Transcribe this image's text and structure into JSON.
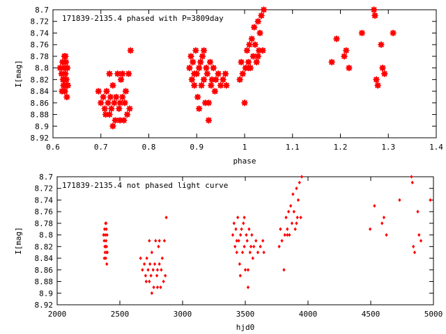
{
  "chart_data": [
    {
      "type": "scatter",
      "title": "171839-2135.4 phased with P=3809day",
      "xlabel": "phase",
      "ylabel": "I[mag]",
      "xlim": [
        0.6,
        1.4
      ],
      "ylim": [
        8.92,
        8.7
      ],
      "y_inverted": true,
      "grid": false,
      "marker_color": "#ff0000",
      "marker": "star",
      "xticks": [
        "0.6",
        "0.7",
        "0.8",
        "0.9",
        "1",
        "1.1",
        "1.2",
        "1.3",
        "1.4"
      ],
      "yticks": [
        "8.7",
        "8.72",
        "8.74",
        "8.76",
        "8.78",
        "8.8",
        "8.82",
        "8.84",
        "8.86",
        "8.88",
        "8.9",
        "8.92"
      ],
      "series": [
        {
          "points": [
            [
              0.615,
              8.8
            ],
            [
              0.618,
              8.81
            ],
            [
              0.62,
              8.79
            ],
            [
              0.621,
              8.82
            ],
            [
              0.622,
              8.83
            ],
            [
              0.623,
              8.8
            ],
            [
              0.624,
              8.78
            ],
            [
              0.625,
              8.84
            ],
            [
              0.626,
              8.81
            ],
            [
              0.627,
              8.79
            ],
            [
              0.628,
              8.82
            ],
            [
              0.629,
              8.85
            ],
            [
              0.63,
              8.8
            ],
            [
              0.631,
              8.83
            ],
            [
              0.619,
              8.84
            ],
            [
              0.624,
              8.82
            ],
            [
              0.626,
              8.78
            ],
            [
              0.628,
              8.83
            ],
            [
              0.695,
              8.84
            ],
            [
              0.7,
              8.86
            ],
            [
              0.705,
              8.85
            ],
            [
              0.708,
              8.87
            ],
            [
              0.712,
              8.84
            ],
            [
              0.715,
              8.86
            ],
            [
              0.718,
              8.88
            ],
            [
              0.72,
              8.85
            ],
            [
              0.722,
              8.87
            ],
            [
              0.725,
              8.83
            ],
            [
              0.728,
              8.86
            ],
            [
              0.73,
              8.89
            ],
            [
              0.732,
              8.85
            ],
            [
              0.735,
              8.81
            ],
            [
              0.738,
              8.87
            ],
            [
              0.74,
              8.86
            ],
            [
              0.742,
              8.82
            ],
            [
              0.745,
              8.85
            ],
            [
              0.748,
              8.89
            ],
            [
              0.75,
              8.86
            ],
            [
              0.752,
              8.84
            ],
            [
              0.755,
              8.88
            ],
            [
              0.758,
              8.81
            ],
            [
              0.76,
              8.87
            ],
            [
              0.762,
              8.77
            ],
            [
              0.725,
              8.9
            ],
            [
              0.718,
              8.81
            ],
            [
              0.71,
              8.88
            ],
            [
              0.74,
              8.89
            ],
            [
              0.745,
              8.81
            ],
            [
              0.885,
              8.8
            ],
            [
              0.888,
              8.78
            ],
            [
              0.89,
              8.82
            ],
            [
              0.892,
              8.79
            ],
            [
              0.895,
              8.83
            ],
            [
              0.898,
              8.77
            ],
            [
              0.9,
              8.81
            ],
            [
              0.902,
              8.85
            ],
            [
              0.905,
              8.8
            ],
            [
              0.908,
              8.79
            ],
            [
              0.91,
              8.83
            ],
            [
              0.912,
              8.78
            ],
            [
              0.915,
              8.82
            ],
            [
              0.918,
              8.86
            ],
            [
              0.92,
              8.8
            ],
            [
              0.922,
              8.81
            ],
            [
              0.925,
              8.89
            ],
            [
              0.928,
              8.79
            ],
            [
              0.93,
              8.83
            ],
            [
              0.932,
              8.82
            ],
            [
              0.935,
              8.8
            ],
            [
              0.938,
              8.84
            ],
            [
              0.94,
              8.82
            ],
            [
              0.945,
              8.81
            ],
            [
              0.95,
              8.83
            ],
            [
              0.955,
              8.82
            ],
            [
              0.96,
              8.81
            ],
            [
              0.962,
              8.83
            ],
            [
              0.905,
              8.87
            ],
            [
              0.915,
              8.77
            ],
            [
              0.925,
              8.86
            ],
            [
              0.895,
              8.81
            ],
            [
              0.99,
              8.82
            ],
            [
              0.993,
              8.79
            ],
            [
              0.996,
              8.81
            ],
            [
              1.0,
              8.86
            ],
            [
              1.002,
              8.8
            ],
            [
              1.005,
              8.77
            ],
            [
              1.008,
              8.79
            ],
            [
              1.01,
              8.76
            ],
            [
              1.012,
              8.8
            ],
            [
              1.015,
              8.75
            ],
            [
              1.018,
              8.78
            ],
            [
              1.02,
              8.73
            ],
            [
              1.022,
              8.76
            ],
            [
              1.025,
              8.79
            ],
            [
              1.028,
              8.72
            ],
            [
              1.03,
              8.77
            ],
            [
              1.032,
              8.74
            ],
            [
              1.035,
              8.71
            ],
            [
              1.038,
              8.77
            ],
            [
              1.04,
              8.7
            ],
            [
              1.008,
              8.8
            ],
            [
              1.028,
              8.78
            ],
            [
              1.182,
              8.79
            ],
            [
              1.192,
              8.75
            ],
            [
              1.208,
              8.78
            ],
            [
              1.212,
              8.77
            ],
            [
              1.218,
              8.8
            ],
            [
              1.245,
              8.74
            ],
            [
              1.27,
              8.7
            ],
            [
              1.272,
              8.71
            ],
            [
              1.275,
              8.82
            ],
            [
              1.278,
              8.83
            ],
            [
              1.285,
              8.76
            ],
            [
              1.288,
              8.8
            ],
            [
              1.292,
              8.81
            ],
            [
              1.31,
              8.74
            ]
          ]
        }
      ]
    },
    {
      "type": "scatter",
      "title": "171839-2135.4 not phased light curve",
      "xlabel": "hjd0",
      "ylabel": "I[mag]",
      "xlim": [
        2000,
        5000
      ],
      "ylim": [
        8.92,
        8.7
      ],
      "y_inverted": true,
      "grid": false,
      "marker_color": "#ff0000",
      "marker": "diamond",
      "xticks": [
        "2000",
        "2500",
        "3000",
        "3500",
        "4000",
        "4500",
        "5000"
      ],
      "yticks": [
        "8.7",
        "8.72",
        "8.74",
        "8.76",
        "8.78",
        "8.8",
        "8.82",
        "8.84",
        "8.86",
        "8.88",
        "8.9",
        "8.92"
      ],
      "series": [
        {
          "points": [
            [
              2370,
              8.8
            ],
            [
              2375,
              8.81
            ],
            [
              2378,
              8.79
            ],
            [
              2380,
              8.82
            ],
            [
              2382,
              8.83
            ],
            [
              2384,
              8.8
            ],
            [
              2386,
              8.78
            ],
            [
              2388,
              8.84
            ],
            [
              2390,
              8.81
            ],
            [
              2392,
              8.79
            ],
            [
              2394,
              8.82
            ],
            [
              2396,
              8.85
            ],
            [
              2398,
              8.8
            ],
            [
              2400,
              8.83
            ],
            [
              2376,
              8.84
            ],
            [
              2385,
              8.82
            ],
            [
              2390,
              8.78
            ],
            [
              2395,
              8.83
            ],
            [
              2665,
              8.84
            ],
            [
              2680,
              8.86
            ],
            [
              2695,
              8.85
            ],
            [
              2705,
              8.87
            ],
            [
              2715,
              8.84
            ],
            [
              2725,
              8.86
            ],
            [
              2735,
              8.88
            ],
            [
              2740,
              8.85
            ],
            [
              2748,
              8.87
            ],
            [
              2755,
              8.83
            ],
            [
              2765,
              8.86
            ],
            [
              2770,
              8.89
            ],
            [
              2778,
              8.85
            ],
            [
              2785,
              8.81
            ],
            [
              2795,
              8.87
            ],
            [
              2800,
              8.86
            ],
            [
              2808,
              8.82
            ],
            [
              2815,
              8.85
            ],
            [
              2825,
              8.89
            ],
            [
              2830,
              8.86
            ],
            [
              2838,
              8.84
            ],
            [
              2848,
              8.88
            ],
            [
              2855,
              8.81
            ],
            [
              2862,
              8.87
            ],
            [
              2870,
              8.77
            ],
            [
              2755,
              8.9
            ],
            [
              2735,
              8.81
            ],
            [
              2710,
              8.88
            ],
            [
              2800,
              8.89
            ],
            [
              2815,
              8.81
            ],
            [
              3400,
              8.8
            ],
            [
              3410,
              8.78
            ],
            [
              3418,
              8.82
            ],
            [
              3425,
              8.79
            ],
            [
              3432,
              8.83
            ],
            [
              3440,
              8.77
            ],
            [
              3448,
              8.81
            ],
            [
              3455,
              8.85
            ],
            [
              3462,
              8.8
            ],
            [
              3470,
              8.79
            ],
            [
              3478,
              8.83
            ],
            [
              3485,
              8.78
            ],
            [
              3492,
              8.82
            ],
            [
              3500,
              8.86
            ],
            [
              3508,
              8.8
            ],
            [
              3515,
              8.81
            ],
            [
              3522,
              8.89
            ],
            [
              3530,
              8.79
            ],
            [
              3538,
              8.83
            ],
            [
              3545,
              8.82
            ],
            [
              3552,
              8.8
            ],
            [
              3560,
              8.84
            ],
            [
              3568,
              8.82
            ],
            [
              3585,
              8.81
            ],
            [
              3600,
              8.83
            ],
            [
              3620,
              8.82
            ],
            [
              3640,
              8.81
            ],
            [
              3648,
              8.83
            ],
            [
              3460,
              8.87
            ],
            [
              3492,
              8.77
            ],
            [
              3522,
              8.86
            ],
            [
              3432,
              8.81
            ],
            [
              3770,
              8.82
            ],
            [
              3780,
              8.79
            ],
            [
              3792,
              8.81
            ],
            [
              3808,
              8.86
            ],
            [
              3815,
              8.8
            ],
            [
              3825,
              8.77
            ],
            [
              3835,
              8.79
            ],
            [
              3845,
              8.76
            ],
            [
              3852,
              8.8
            ],
            [
              3862,
              8.75
            ],
            [
              3872,
              8.78
            ],
            [
              3880,
              8.73
            ],
            [
              3888,
              8.76
            ],
            [
              3898,
              8.79
            ],
            [
              3908,
              8.72
            ],
            [
              3915,
              8.77
            ],
            [
              3922,
              8.74
            ],
            [
              3932,
              8.71
            ],
            [
              3942,
              8.77
            ],
            [
              3950,
              8.7
            ],
            [
              3835,
              8.8
            ],
            [
              3908,
              8.78
            ],
            [
              4495,
              8.79
            ],
            [
              4530,
              8.75
            ],
            [
              4590,
              8.78
            ],
            [
              4605,
              8.77
            ],
            [
              4625,
              8.8
            ],
            [
              4730,
              8.74
            ],
            [
              4825,
              8.7
            ],
            [
              4832,
              8.71
            ],
            [
              4840,
              8.82
            ],
            [
              4850,
              8.83
            ],
            [
              4875,
              8.76
            ],
            [
              4885,
              8.8
            ],
            [
              4900,
              8.81
            ],
            [
              4975,
              8.74
            ]
          ]
        }
      ]
    }
  ]
}
